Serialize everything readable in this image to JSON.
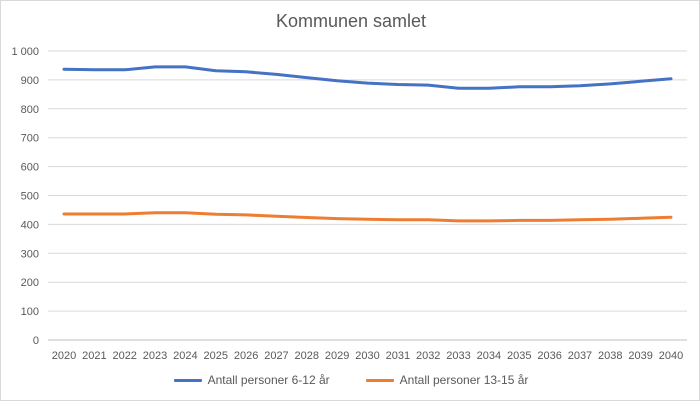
{
  "chart_data": {
    "type": "line",
    "title": "Kommunen samlet",
    "xlabel": "",
    "ylabel": "",
    "x": [
      "2020",
      "2021",
      "2022",
      "2023",
      "2024",
      "2025",
      "2026",
      "2027",
      "2028",
      "2029",
      "2030",
      "2031",
      "2032",
      "2033",
      "2034",
      "2035",
      "2036",
      "2037",
      "2038",
      "2039",
      "2040"
    ],
    "yticks": [
      "0",
      "100",
      "200",
      "300",
      "400",
      "500",
      "600",
      "700",
      "800",
      "900",
      "1 000"
    ],
    "ylim": [
      0,
      1000
    ],
    "grid": true,
    "legend_position": "bottom",
    "series": [
      {
        "name": "Antall personer 6-12 år",
        "color": "#4472c4",
        "values": [
          937,
          935,
          935,
          945,
          945,
          932,
          928,
          919,
          908,
          897,
          889,
          884,
          882,
          871,
          871,
          876,
          876,
          880,
          886,
          895,
          904
        ]
      },
      {
        "name": "Antall personer 13-15 år",
        "color": "#ed7d31",
        "values": [
          436,
          436,
          436,
          440,
          440,
          435,
          433,
          428,
          424,
          420,
          418,
          416,
          416,
          412,
          412,
          414,
          414,
          416,
          418,
          421,
          425
        ]
      }
    ]
  }
}
